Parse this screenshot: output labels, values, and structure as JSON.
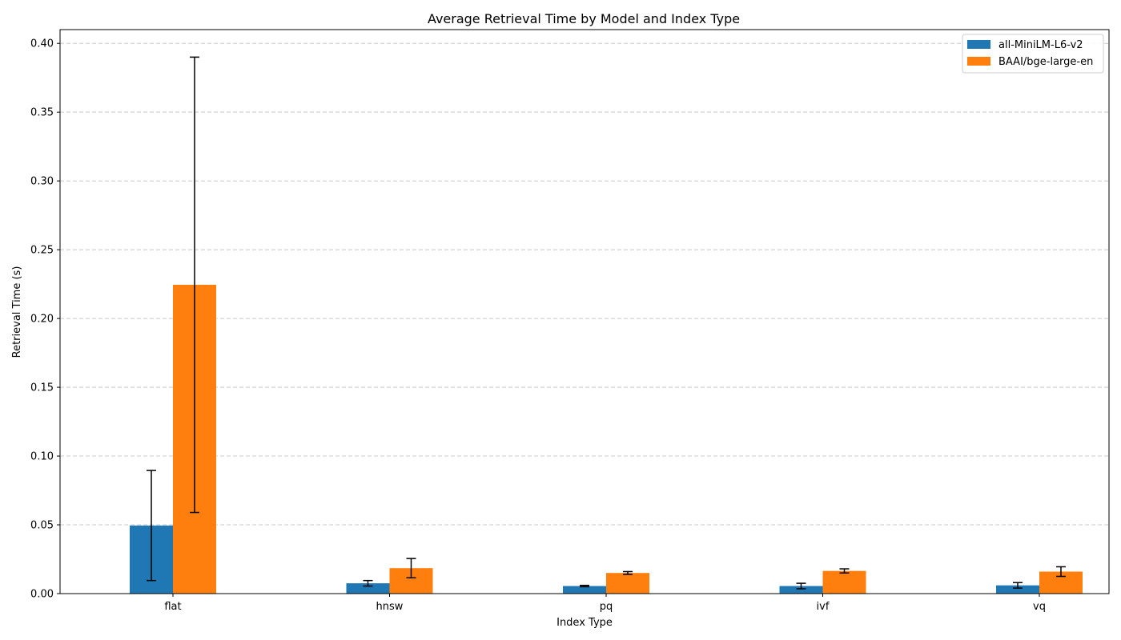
{
  "chart_data": {
    "type": "bar",
    "title": "Average Retrieval Time by Model and Index Type",
    "xlabel": "Index Type",
    "ylabel": "Retrieval Time (s)",
    "categories": [
      "flat",
      "hnsw",
      "pq",
      "ivf",
      "vq"
    ],
    "ylim": [
      0,
      0.41
    ],
    "yticks": [
      "0.00",
      "0.05",
      "0.10",
      "0.15",
      "0.20",
      "0.25",
      "0.30",
      "0.35",
      "0.40"
    ],
    "grid": "horizontal dashed",
    "legend_position": "top-right",
    "series": [
      {
        "name": "all-MiniLM-L6-v2",
        "color": "#1f77b4",
        "values": [
          0.0495,
          0.0075,
          0.0055,
          0.0055,
          0.006
        ],
        "error": [
          0.04,
          0.002,
          0.0005,
          0.002,
          0.002
        ]
      },
      {
        "name": "BAAI/bge-large-en",
        "color": "#ff7f0e",
        "values": [
          0.2245,
          0.0185,
          0.015,
          0.0165,
          0.016
        ],
        "error": [
          0.1655,
          0.007,
          0.001,
          0.0015,
          0.0035
        ]
      }
    ]
  }
}
